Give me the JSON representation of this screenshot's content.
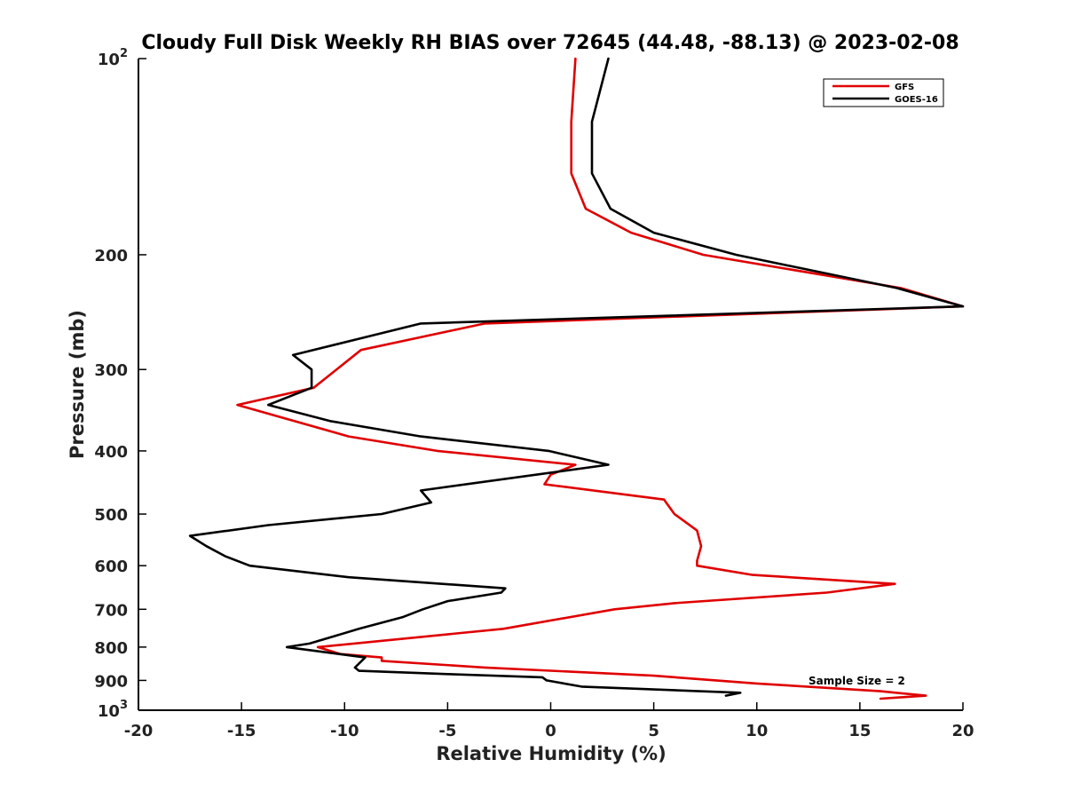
{
  "chart_data": {
    "type": "line",
    "title": "Cloudy Full Disk Weekly RH BIAS over 72645 (44.48, -88.13) @ 2023-02-08",
    "xlabel": "Relative Humidity (%)",
    "ylabel": "Pressure (mb)",
    "xlim": [
      -20,
      20
    ],
    "ylim": [
      100,
      1000
    ],
    "y_scale": "log",
    "y_inverted": true,
    "grid": false,
    "legend_position": "top-right",
    "annotation": "Sample Size = 2",
    "x_ticks": [
      {
        "value": -20,
        "label": "-20"
      },
      {
        "value": -15,
        "label": "-15"
      },
      {
        "value": -10,
        "label": "-10"
      },
      {
        "value": -5,
        "label": "-5"
      },
      {
        "value": 0,
        "label": "0"
      },
      {
        "value": 5,
        "label": "5"
      },
      {
        "value": 10,
        "label": "10"
      },
      {
        "value": 15,
        "label": "15"
      },
      {
        "value": 20,
        "label": "20"
      }
    ],
    "y_ticks": [
      {
        "value": 100,
        "base": "10",
        "exp": "2"
      },
      {
        "value": 200,
        "label": "200"
      },
      {
        "value": 300,
        "label": "300"
      },
      {
        "value": 400,
        "label": "400"
      },
      {
        "value": 500,
        "label": "500"
      },
      {
        "value": 600,
        "label": "600"
      },
      {
        "value": 700,
        "label": "700"
      },
      {
        "value": 800,
        "label": "800"
      },
      {
        "value": 900,
        "label": "900"
      },
      {
        "value": 1000,
        "base": "10",
        "exp": "3"
      }
    ],
    "series": [
      {
        "name": "GFS",
        "color": "#e00000",
        "points": [
          [
            1.2,
            100
          ],
          [
            1.0,
            125
          ],
          [
            1.0,
            150
          ],
          [
            1.7,
            170
          ],
          [
            3.9,
            185
          ],
          [
            7.4,
            200
          ],
          [
            17.0,
            225
          ],
          [
            20.0,
            240
          ],
          [
            -3.2,
            255
          ],
          [
            -9.2,
            280
          ],
          [
            -11.5,
            320
          ],
          [
            -15.2,
            340
          ],
          [
            -9.8,
            380
          ],
          [
            -5.5,
            400
          ],
          [
            1.2,
            420
          ],
          [
            0.0,
            435
          ],
          [
            -0.3,
            450
          ],
          [
            5.5,
            475
          ],
          [
            6.0,
            500
          ],
          [
            7.1,
            530
          ],
          [
            7.3,
            560
          ],
          [
            7.1,
            590
          ],
          [
            7.1,
            600
          ],
          [
            9.8,
            620
          ],
          [
            16.7,
            640
          ],
          [
            13.4,
            660
          ],
          [
            6.0,
            685
          ],
          [
            3.1,
            700
          ],
          [
            -2.3,
            750
          ],
          [
            -11.3,
            800
          ],
          [
            -10.2,
            820
          ],
          [
            -8.2,
            830
          ],
          [
            -8.2,
            840
          ],
          [
            -3.2,
            860
          ],
          [
            5.0,
            885
          ],
          [
            10.0,
            910
          ],
          [
            16.0,
            935
          ],
          [
            18.2,
            950
          ],
          [
            16.0,
            960
          ]
        ]
      },
      {
        "name": "GOES-16",
        "color": "#000000",
        "points": [
          [
            2.8,
            100
          ],
          [
            2.0,
            125
          ],
          [
            2.0,
            150
          ],
          [
            2.9,
            170
          ],
          [
            5.0,
            185
          ],
          [
            9.0,
            200
          ],
          [
            16.8,
            225
          ],
          [
            20.0,
            240
          ],
          [
            -6.3,
            255
          ],
          [
            -12.5,
            285
          ],
          [
            -11.6,
            300
          ],
          [
            -11.6,
            320
          ],
          [
            -13.7,
            340
          ],
          [
            -10.7,
            360
          ],
          [
            -6.3,
            380
          ],
          [
            -0.1,
            400
          ],
          [
            2.8,
            420
          ],
          [
            -6.3,
            460
          ],
          [
            -5.8,
            480
          ],
          [
            -8.2,
            500
          ],
          [
            -13.7,
            520
          ],
          [
            -17.5,
            540
          ],
          [
            -16.7,
            560
          ],
          [
            -15.8,
            580
          ],
          [
            -14.6,
            600
          ],
          [
            -9.8,
            625
          ],
          [
            -2.2,
            650
          ],
          [
            -2.4,
            660
          ],
          [
            -5.0,
            680
          ],
          [
            -6.2,
            700
          ],
          [
            -7.2,
            720
          ],
          [
            -9.3,
            750
          ],
          [
            -11.7,
            790
          ],
          [
            -12.8,
            800
          ],
          [
            -9.0,
            830
          ],
          [
            -9.5,
            860
          ],
          [
            -9.3,
            870
          ],
          [
            -5.0,
            880
          ],
          [
            -0.4,
            890
          ],
          [
            -0.2,
            900
          ],
          [
            1.5,
            920
          ],
          [
            9.2,
            940
          ],
          [
            8.5,
            950
          ]
        ]
      }
    ]
  }
}
